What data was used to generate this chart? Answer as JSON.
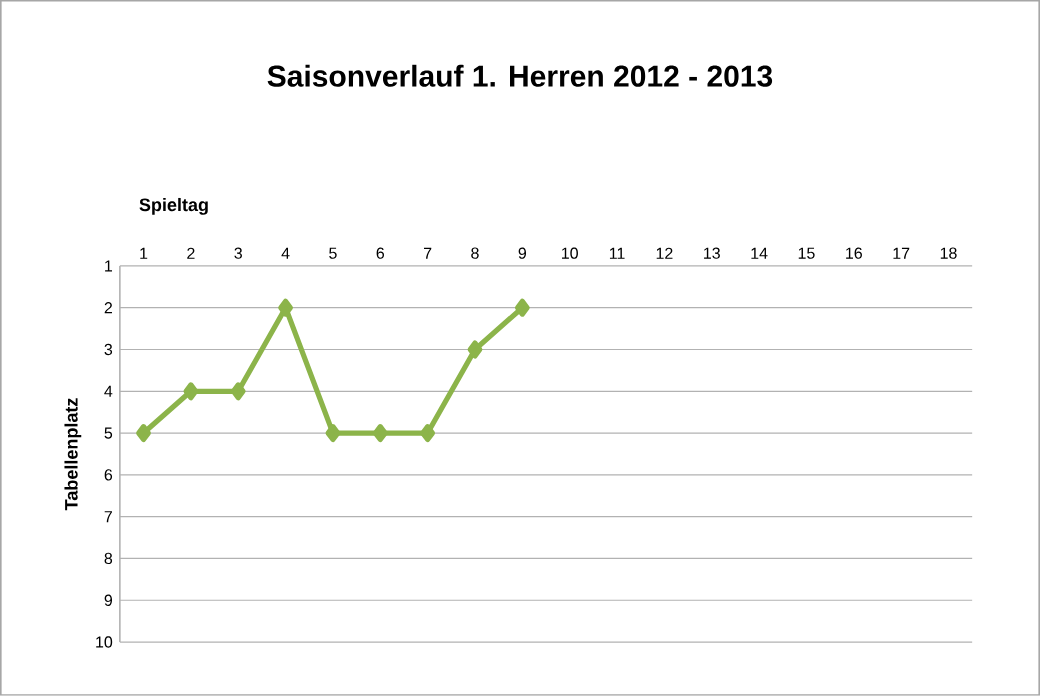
{
  "chart_data": {
    "type": "line",
    "title": "Saisonverlauf 1. Herren 2012 - 2013",
    "xlabel": "Spieltag",
    "ylabel": "Tabellenplatz",
    "categories": [
      "1",
      "2",
      "3",
      "4",
      "5",
      "6",
      "7",
      "8",
      "9",
      "10",
      "11",
      "12",
      "13",
      "14",
      "15",
      "16",
      "17",
      "18"
    ],
    "series": [
      {
        "color": "#8cb44a",
        "values": [
          5,
          4,
          4,
          2,
          5,
          5,
          5,
          3,
          2,
          null,
          null,
          null,
          null,
          null,
          null,
          null,
          null,
          null
        ]
      }
    ],
    "ylim": [
      10,
      1
    ],
    "yticks": [
      1,
      2,
      3,
      4,
      5,
      6,
      7,
      8,
      9,
      10
    ],
    "grid": "y",
    "marker": "diamond",
    "line_style": "solid"
  }
}
